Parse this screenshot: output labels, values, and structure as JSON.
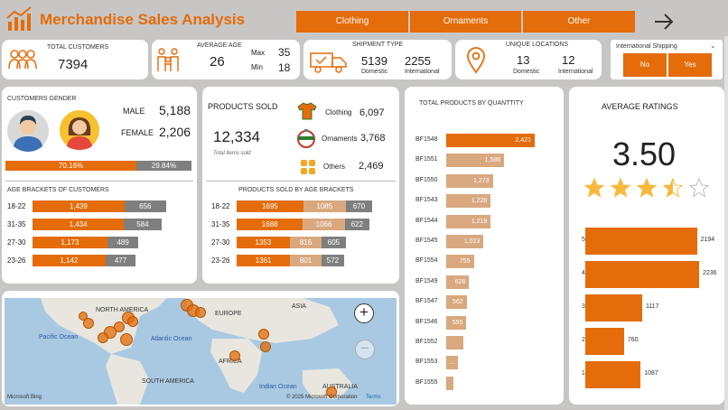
{
  "header": {
    "title": "Merchandise Sales Analysis",
    "buttons": [
      "Clothing",
      "Ornaments",
      "Other"
    ],
    "accent": "#e46c0a"
  },
  "kpi": {
    "total_customers_label": "TOTAL CUSTOMERS",
    "total_customers": "7394",
    "avg_age_label": "AVERAGE AGE",
    "avg_age": "26",
    "max_label": "Max",
    "max": "35",
    "min_label": "Min",
    "min": "18",
    "shipment_label": "SHIPMENT TYPE",
    "domestic": "5139",
    "domestic_label": "Domestic",
    "international": "2255",
    "international_label": "International",
    "unique_label": "UNIQUE LOCATIONS",
    "unique_domestic": "13",
    "unique_international": "12",
    "intl_shipping_label": "International Shipping",
    "no_label": "No",
    "yes_label": "Yes"
  },
  "gender": {
    "title": "CUSTOMERS GENDER",
    "male_label": "MALE",
    "male": "5,188",
    "female_label": "FEMALE",
    "female": "2,206",
    "male_pct": "70.16%",
    "female_pct": "29.84%",
    "male_share": 0.7016
  },
  "age_brackets": {
    "title": "AGE BRACKETS OF CUSTOMERS",
    "rows": [
      {
        "label": "18-22",
        "a": "1,439",
        "b": "656",
        "av": 1439,
        "bv": 656
      },
      {
        "label": "31-35",
        "a": "1,434",
        "b": "584",
        "av": 1434,
        "bv": 584
      },
      {
        "label": "27-30",
        "a": "1,173",
        "b": "489",
        "av": 1173,
        "bv": 489
      },
      {
        "label": "23-26",
        "a": "1,142",
        "b": "477",
        "av": 1142,
        "bv": 477
      }
    ]
  },
  "products_sold": {
    "title": "PRODUCTS SOLD",
    "total": "12,334",
    "total_caption": "Total items sold",
    "clothing_label": "Clothing",
    "clothing": "6,097",
    "ornaments_label": "Ornaments",
    "ornaments": "3,768",
    "others_label": "Others",
    "others": "2,469"
  },
  "products_by_age": {
    "title": "PRODUCTS SOLD BY AGE BRACKETS",
    "rows": [
      {
        "label": "18-22",
        "a": "1695",
        "b": "1085",
        "c": "670",
        "av": 1695,
        "bv": 1085,
        "cv": 670
      },
      {
        "label": "31-35",
        "a": "1688",
        "b": "1066",
        "c": "622",
        "av": 1688,
        "bv": 1066,
        "cv": 622
      },
      {
        "label": "27-30",
        "a": "1353",
        "b": "816",
        "c": "605",
        "av": 1353,
        "bv": 816,
        "cv": 605
      },
      {
        "label": "23-26",
        "a": "1361",
        "b": "801",
        "c": "572",
        "av": 1361,
        "bv": 801,
        "cv": 572
      }
    ]
  },
  "map": {
    "labels": [
      "NORTH AMERICA",
      "EUROPE",
      "ASIA",
      "Atlantic Ocean",
      "Pacific Ocean",
      "AFRICA",
      "SOUTH AMERICA",
      "Indian Ocean",
      "AUSTRALIA"
    ],
    "brand": "Microsoft Bing",
    "copyright": "© 2025 Microsoft Corporation",
    "terms": "Terms"
  },
  "chart_data": [
    {
      "type": "bar",
      "title": "TOTAL PRODUCTS BY QUANTTITY",
      "categories": [
        "BF1548",
        "BF1551",
        "BF1550",
        "BF1543",
        "BF1544",
        "BF1545",
        "BF1554",
        "BF1549",
        "BF1547",
        "BF1546",
        "BF1552",
        "BF1553",
        "BF1555"
      ],
      "values": [
        2421,
        1586,
        1273,
        1220,
        1219,
        1023,
        755,
        628,
        562,
        555,
        0,
        0,
        0
      ],
      "labels": [
        "2,421",
        "1,586",
        "1,273",
        "1,220",
        "1,219",
        "1,023",
        "755",
        "628",
        "562",
        "555",
        "",
        "...",
        ""
      ],
      "est_widths": [
        2421,
        1586,
        1273,
        1220,
        1219,
        1023,
        755,
        628,
        562,
        555,
        470,
        330,
        200
      ]
    },
    {
      "type": "bar",
      "title": "AVERAGE RATINGS",
      "average": "3.50",
      "stars": 3.5,
      "categories": [
        "5",
        "4",
        "3",
        "2",
        "1"
      ],
      "values": [
        2194,
        2236,
        1117,
        760,
        1087
      ],
      "labels": [
        "2194",
        "2236",
        "1117",
        "760",
        "1087"
      ]
    }
  ]
}
